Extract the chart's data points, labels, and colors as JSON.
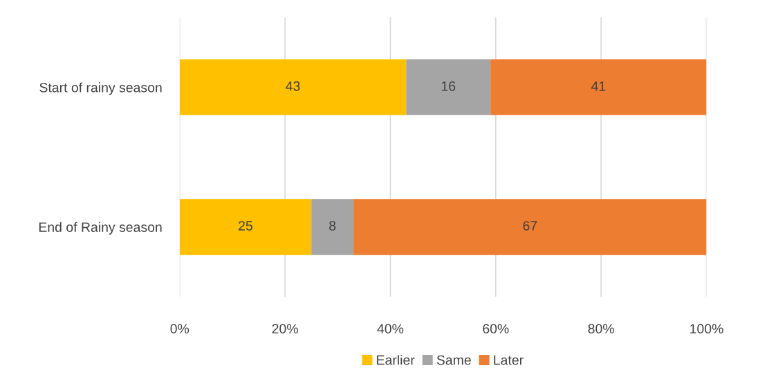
{
  "chart_data": {
    "type": "bar",
    "orientation": "horizontal",
    "stacked": true,
    "categories": [
      "Start of rainy season",
      "End of Rainy season"
    ],
    "series": [
      {
        "name": "Earlier",
        "color": "#ffc000",
        "values": [
          43,
          25
        ]
      },
      {
        "name": "Same",
        "color": "#a5a5a5",
        "values": [
          16,
          8
        ]
      },
      {
        "name": "Later",
        "color": "#ed7d31",
        "values": [
          41,
          67
        ]
      }
    ],
    "xlim": [
      0,
      100
    ],
    "xticks": [
      {
        "value": 0,
        "label": "0%"
      },
      {
        "value": 20,
        "label": "20%"
      },
      {
        "value": 40,
        "label": "40%"
      },
      {
        "value": 60,
        "label": "60%"
      },
      {
        "value": 80,
        "label": "80%"
      },
      {
        "value": 100,
        "label": "100%"
      }
    ],
    "grid": "x",
    "legend": "bottom",
    "data_labels": true
  }
}
